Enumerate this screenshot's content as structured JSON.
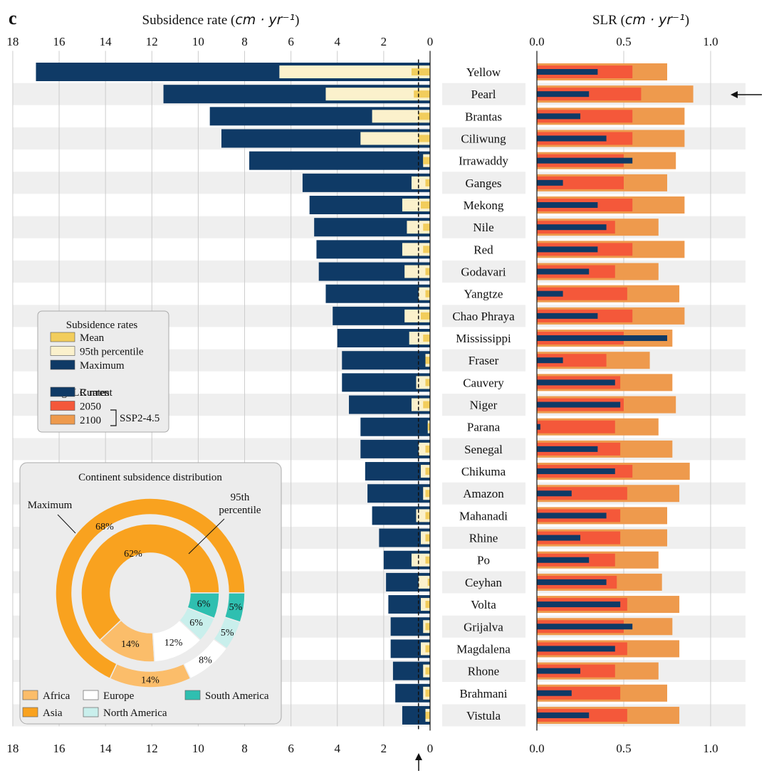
{
  "panel_letter": "c",
  "chart_data": [
    {
      "type": "bar",
      "orientation": "horizontal-reversed",
      "title": "Subsidence rate",
      "xlabel_unit": "cm · yr⁻¹",
      "xlim": [
        18,
        0
      ],
      "xticks": [
        18,
        16,
        14,
        12,
        10,
        8,
        6,
        4,
        2,
        0
      ],
      "grid": true,
      "reference_line": 0.5,
      "categories": [
        "Yellow",
        "Pearl",
        "Brantas",
        "Ciliwung",
        "Irrawaddy",
        "Ganges",
        "Mekong",
        "Nile",
        "Red",
        "Godavari",
        "Yangtze",
        "Chao Phraya",
        "Mississippi",
        "Fraser",
        "Cauvery",
        "Niger",
        "Parana",
        "Senegal",
        "Chikuma",
        "Amazon",
        "Mahanadi",
        "Rhine",
        "Po",
        "Ceyhan",
        "Volta",
        "Grijalva",
        "Magdalena",
        "Rhone",
        "Brahmani",
        "Vistula"
      ],
      "series": [
        {
          "name": "Maximum",
          "color": "#0f3a66",
          "values": [
            17.0,
            11.5,
            9.5,
            9.0,
            7.8,
            5.5,
            5.2,
            5.0,
            4.9,
            4.8,
            4.5,
            4.2,
            4.0,
            3.8,
            3.8,
            3.5,
            3.0,
            3.0,
            2.8,
            2.7,
            2.5,
            2.2,
            2.0,
            1.9,
            1.8,
            1.7,
            1.7,
            1.6,
            1.5,
            1.2
          ]
        },
        {
          "name": "95th percentile",
          "color": "#fbf1cc",
          "values": [
            6.5,
            4.5,
            2.5,
            3.0,
            0.3,
            0.8,
            1.2,
            1.0,
            1.2,
            1.1,
            0.5,
            1.1,
            0.9,
            0.2,
            0.6,
            0.8,
            0.1,
            0.5,
            0.4,
            0.3,
            0.6,
            0.4,
            0.8,
            0.5,
            0.4,
            0.3,
            0.4,
            0.3,
            0.3,
            0.2
          ]
        },
        {
          "name": "Mean",
          "color": "#f2cd5c",
          "values": [
            0.8,
            0.7,
            0.5,
            0.5,
            0.3,
            0.2,
            0.4,
            0.3,
            0.3,
            0.2,
            0.2,
            0.4,
            0.3,
            0.2,
            0.2,
            0.3,
            0.1,
            0.2,
            0.2,
            0.2,
            0.2,
            0.2,
            0.2,
            0.1,
            0.2,
            0.2,
            0.2,
            0.2,
            0.2,
            0.2
          ]
        }
      ]
    },
    {
      "type": "bar",
      "orientation": "horizontal",
      "title": "SLR",
      "xlabel_unit": "cm · yr⁻¹",
      "xlim": [
        0,
        1.2
      ],
      "xticks": [
        "0.0",
        "0.5",
        "1.0"
      ],
      "grid": true,
      "highlight_row": "Pearl",
      "categories": [
        "Yellow",
        "Pearl",
        "Brantas",
        "Ciliwung",
        "Irrawaddy",
        "Ganges",
        "Mekong",
        "Nile",
        "Red",
        "Godavari",
        "Yangtze",
        "Chao Phraya",
        "Mississippi",
        "Fraser",
        "Cauvery",
        "Niger",
        "Parana",
        "Senegal",
        "Chikuma",
        "Amazon",
        "Mahanadi",
        "Rhine",
        "Po",
        "Ceyhan",
        "Volta",
        "Grijalva",
        "Magdalena",
        "Rhone",
        "Brahmani",
        "Vistula"
      ],
      "series": [
        {
          "name": "2100",
          "color": "#ee9a4d",
          "values": [
            0.75,
            0.9,
            0.85,
            0.85,
            0.8,
            0.75,
            0.85,
            0.7,
            0.85,
            0.7,
            0.82,
            0.85,
            0.78,
            0.65,
            0.78,
            0.8,
            0.7,
            0.78,
            0.88,
            0.82,
            0.75,
            0.75,
            0.7,
            0.72,
            0.82,
            0.78,
            0.82,
            0.7,
            0.75,
            0.82
          ]
        },
        {
          "name": "2050",
          "color": "#f4583a",
          "values": [
            0.55,
            0.6,
            0.55,
            0.55,
            0.5,
            0.5,
            0.55,
            0.45,
            0.55,
            0.45,
            0.52,
            0.55,
            0.5,
            0.4,
            0.48,
            0.5,
            0.45,
            0.48,
            0.55,
            0.52,
            0.48,
            0.48,
            0.45,
            0.46,
            0.52,
            0.5,
            0.52,
            0.45,
            0.48,
            0.52
          ]
        },
        {
          "name": "Current",
          "color": "#0f3a66",
          "values": [
            0.35,
            0.3,
            0.25,
            0.4,
            0.55,
            0.15,
            0.35,
            0.4,
            0.35,
            0.3,
            0.15,
            0.35,
            0.75,
            0.15,
            0.45,
            0.48,
            0.02,
            0.35,
            0.45,
            0.2,
            0.4,
            0.25,
            0.3,
            0.4,
            0.48,
            0.55,
            0.45,
            0.25,
            0.2,
            0.3
          ]
        }
      ]
    },
    {
      "type": "pie",
      "variant": "nested-donut",
      "title": "Continent subsidence distribution",
      "rings": [
        {
          "name": "Maximum",
          "position": "outer",
          "labels": [
            "Asia",
            "Africa",
            "Europe",
            "North America",
            "South America"
          ],
          "values": [
            68,
            14,
            8,
            5,
            5
          ]
        },
        {
          "name": "95th percentile",
          "position": "inner",
          "labels": [
            "Asia",
            "Africa",
            "Europe",
            "North America",
            "South America"
          ],
          "values": [
            62,
            14,
            12,
            6,
            6
          ]
        }
      ],
      "colors": {
        "Asia": "#f9a21f",
        "Africa": "#fbbd6a",
        "Europe": "#ffffff",
        "North America": "#c9efec",
        "South America": "#2fbfb0"
      },
      "ring_labels": {
        "outer": "Maximum",
        "inner_line1": "95th",
        "inner_line2": "percentile"
      }
    }
  ],
  "legend": {
    "subsidence_title": "Subsidence rates",
    "subsidence_items": [
      {
        "label": "Mean",
        "color": "#f2cd5c"
      },
      {
        "label": "95th percentile",
        "color": "#fbf1cc"
      },
      {
        "label": "Maximum",
        "color": "#0f3a66"
      }
    ],
    "gslr_title": "gSLR rates",
    "gslr_items": [
      {
        "label": "Current",
        "color": "#0f3a66"
      },
      {
        "label": "2050",
        "color": "#f4583a"
      },
      {
        "label": "2100",
        "color": "#ee9a4d"
      }
    ],
    "scenario": "SSP2-4.5"
  },
  "continent_legend": [
    {
      "label": "Africa",
      "color": "#fbbd6a"
    },
    {
      "label": "Europe",
      "color": "#ffffff"
    },
    {
      "label": "South America",
      "color": "#2fbfb0"
    },
    {
      "label": "Asia",
      "color": "#f9a21f"
    },
    {
      "label": "North America",
      "color": "#c9efec"
    }
  ]
}
